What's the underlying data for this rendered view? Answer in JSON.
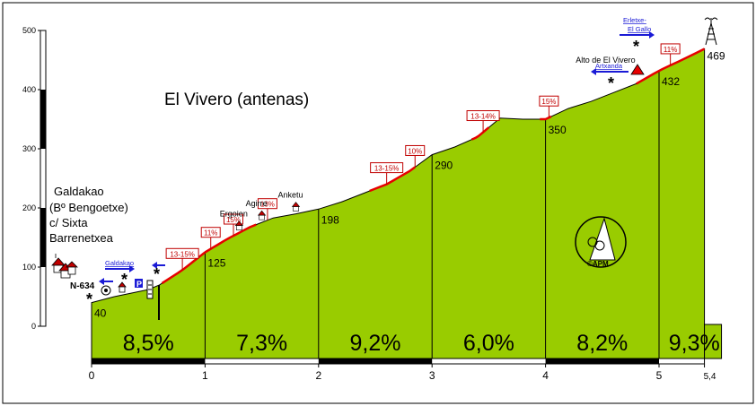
{
  "chart_data": {
    "type": "area",
    "title": "El Vivero (antenas)",
    "start_label": {
      "name": "Galdakao",
      "lines": [
        "(Bº Bengoetxe)",
        "c/ Sixta",
        "Barrenetxea"
      ]
    },
    "xlim": [
      0,
      5.4
    ],
    "ylim": [
      0,
      500
    ],
    "x_ticks": [
      {
        "value": 0,
        "label": "0"
      },
      {
        "value": 1,
        "label": "1"
      },
      {
        "value": 2,
        "label": "2"
      },
      {
        "value": 3,
        "label": "3"
      },
      {
        "value": 4,
        "label": "4"
      },
      {
        "value": 5,
        "label": "5"
      },
      {
        "value": 5.4,
        "label": "5,4"
      }
    ],
    "y_ticks": [
      {
        "value": 0,
        "label": "0"
      },
      {
        "value": 100,
        "label": "100"
      },
      {
        "value": 200,
        "label": "200"
      },
      {
        "value": 300,
        "label": "300"
      },
      {
        "value": 400,
        "label": "400"
      },
      {
        "value": 500,
        "label": "500"
      }
    ],
    "profile": {
      "x": [
        0,
        0.2,
        0.4,
        0.5,
        0.6,
        0.8,
        1.0,
        1.2,
        1.4,
        1.6,
        1.8,
        2.0,
        2.2,
        2.4,
        2.6,
        2.8,
        3.0,
        3.2,
        3.4,
        3.6,
        3.8,
        4.0,
        4.2,
        4.4,
        4.6,
        4.8,
        5.0,
        5.2,
        5.4
      ],
      "y": [
        40,
        50,
        58,
        62,
        70,
        95,
        125,
        148,
        168,
        183,
        190,
        198,
        210,
        225,
        240,
        262,
        290,
        303,
        320,
        352,
        350,
        350,
        368,
        380,
        395,
        410,
        432,
        450,
        469
      ]
    },
    "km_markers": [
      {
        "x": 0,
        "y": 40,
        "label": "40"
      },
      {
        "x": 1,
        "y": 125,
        "label": "125"
      },
      {
        "x": 2,
        "y": 198,
        "label": "198"
      },
      {
        "x": 3,
        "y": 290,
        "label": "290"
      },
      {
        "x": 4,
        "y": 350,
        "label": "350"
      },
      {
        "x": 5,
        "y": 432,
        "label": "432"
      },
      {
        "x": 5.4,
        "y": 469,
        "label": "469"
      }
    ],
    "segments": [
      {
        "from": 0,
        "to": 1,
        "label": "8,5%"
      },
      {
        "from": 1,
        "to": 2,
        "label": "7,3%"
      },
      {
        "from": 2,
        "to": 3,
        "label": "9,2%"
      },
      {
        "from": 3,
        "to": 4,
        "label": "6,0%"
      },
      {
        "from": 4,
        "to": 5,
        "label": "8,2%"
      },
      {
        "from": 5,
        "to": 5.4,
        "label": "9,3%"
      }
    ],
    "steep_sections": [
      {
        "from": 0.62,
        "to": 1.0
      },
      {
        "from": 1.0,
        "to": 1.45
      },
      {
        "from": 2.45,
        "to": 2.85
      },
      {
        "from": 3.35,
        "to": 3.5
      },
      {
        "from": 3.95,
        "to": 4.05
      },
      {
        "from": 4.8,
        "to": 5.4
      }
    ],
    "gradient_tags": [
      {
        "x": 0.8,
        "label": "13-15%"
      },
      {
        "x": 1.05,
        "label": "11%"
      },
      {
        "x": 1.25,
        "label": "15%"
      },
      {
        "x": 1.55,
        "label": "13%"
      },
      {
        "x": 2.6,
        "label": "13-15%"
      },
      {
        "x": 2.85,
        "label": "10%"
      },
      {
        "x": 3.45,
        "label": "13-14%"
      },
      {
        "x": 4.03,
        "label": "15%"
      },
      {
        "x": 5.1,
        "label": "11%"
      }
    ],
    "places": [
      {
        "x": 1.3,
        "label": "Ergoien"
      },
      {
        "x": 1.5,
        "label": "Agirre"
      },
      {
        "x": 1.8,
        "label": "Anketu"
      },
      {
        "x": 4.75,
        "label": "Alto de El Vivero"
      }
    ],
    "roads": [
      {
        "id": "n634",
        "label": "N-634"
      },
      {
        "id": "galdakao",
        "label": "Galdakao"
      },
      {
        "id": "artxanda",
        "label": "Artxanda"
      },
      {
        "id": "erletxe",
        "label": "Erletxe-"
      },
      {
        "id": "elgallo",
        "label": "El Gallo"
      }
    ],
    "logo_text": "©APM",
    "parking_text": "P",
    "colors": {
      "fill": "#99cc00",
      "steep": "#e60000",
      "road": "#1a1ad6",
      "tag": "#c00000"
    }
  }
}
